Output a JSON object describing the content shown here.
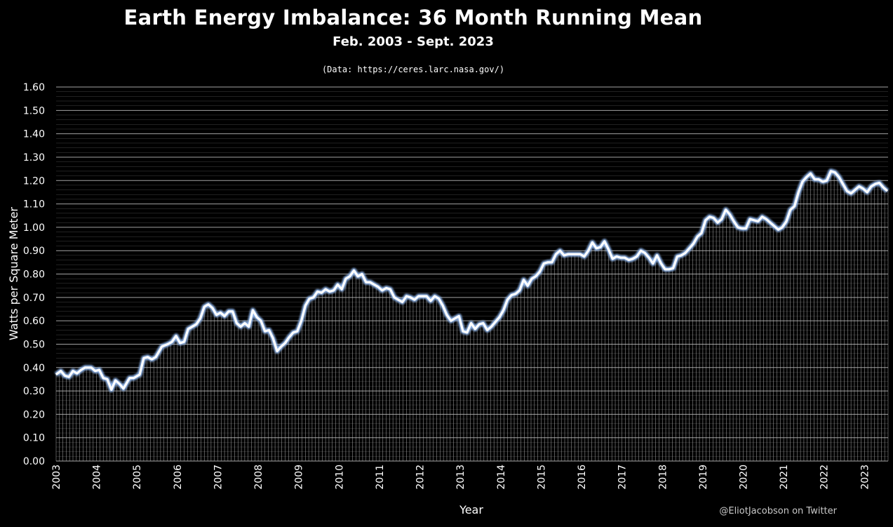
{
  "chart_data": {
    "type": "line",
    "title": "Earth Energy Imbalance: 36 Month Running Mean",
    "subtitle": "Feb. 2003 - Sept. 2023",
    "source_note": "(Data: https://ceres.larc.nasa.gov/)",
    "xlabel": "Year",
    "ylabel": "Watts per Square Meter",
    "credit": "@EliotJacobson on Twitter",
    "ylim": [
      0,
      1.6
    ],
    "yticks": [
      "0.00",
      "0.10",
      "0.20",
      "0.30",
      "0.40",
      "0.50",
      "0.60",
      "0.70",
      "0.80",
      "0.90",
      "1.00",
      "1.10",
      "1.20",
      "1.30",
      "1.40",
      "1.50",
      "1.60"
    ],
    "xticks": [
      "2003",
      "2004",
      "2005",
      "2006",
      "2007",
      "2008",
      "2009",
      "2010",
      "2011",
      "2012",
      "2013",
      "2014",
      "2015",
      "2016",
      "2017",
      "2018",
      "2019",
      "2020",
      "2021",
      "2022",
      "2023"
    ],
    "x_start": 2003.083,
    "x_end": 2023.667,
    "grid": true,
    "colors": {
      "background": "#000000",
      "line": "#ffffff",
      "line_glow": "#8fb4e8",
      "grid": "#bfbfbf"
    },
    "series": [
      {
        "points": [
          [
            2003.08,
            0.37
          ],
          [
            2003.2,
            0.385
          ],
          [
            2003.3,
            0.365
          ],
          [
            2003.4,
            0.36
          ],
          [
            2003.5,
            0.385
          ],
          [
            2003.6,
            0.375
          ],
          [
            2003.7,
            0.39
          ],
          [
            2003.8,
            0.4
          ],
          [
            2003.95,
            0.4
          ],
          [
            2004.05,
            0.385
          ],
          [
            2004.15,
            0.39
          ],
          [
            2004.25,
            0.355
          ],
          [
            2004.35,
            0.35
          ],
          [
            2004.45,
            0.305
          ],
          [
            2004.55,
            0.345
          ],
          [
            2004.65,
            0.33
          ],
          [
            2004.75,
            0.31
          ],
          [
            2004.9,
            0.355
          ],
          [
            2005.0,
            0.355
          ],
          [
            2005.15,
            0.37
          ],
          [
            2005.25,
            0.44
          ],
          [
            2005.35,
            0.445
          ],
          [
            2005.45,
            0.435
          ],
          [
            2005.55,
            0.445
          ],
          [
            2005.7,
            0.49
          ],
          [
            2005.85,
            0.5
          ],
          [
            2005.95,
            0.51
          ],
          [
            2006.05,
            0.535
          ],
          [
            2006.15,
            0.505
          ],
          [
            2006.25,
            0.51
          ],
          [
            2006.35,
            0.565
          ],
          [
            2006.45,
            0.575
          ],
          [
            2006.55,
            0.585
          ],
          [
            2006.65,
            0.61
          ],
          [
            2006.75,
            0.66
          ],
          [
            2006.85,
            0.67
          ],
          [
            2006.95,
            0.655
          ],
          [
            2007.05,
            0.625
          ],
          [
            2007.15,
            0.635
          ],
          [
            2007.25,
            0.62
          ],
          [
            2007.35,
            0.64
          ],
          [
            2007.45,
            0.64
          ],
          [
            2007.55,
            0.59
          ],
          [
            2007.65,
            0.575
          ],
          [
            2007.75,
            0.59
          ],
          [
            2007.85,
            0.575
          ],
          [
            2007.95,
            0.645
          ],
          [
            2008.05,
            0.615
          ],
          [
            2008.15,
            0.6
          ],
          [
            2008.25,
            0.555
          ],
          [
            2008.35,
            0.56
          ],
          [
            2008.45,
            0.525
          ],
          [
            2008.55,
            0.47
          ],
          [
            2008.65,
            0.49
          ],
          [
            2008.75,
            0.505
          ],
          [
            2008.85,
            0.53
          ],
          [
            2008.95,
            0.55
          ],
          [
            2009.05,
            0.555
          ],
          [
            2009.15,
            0.6
          ],
          [
            2009.25,
            0.665
          ],
          [
            2009.35,
            0.695
          ],
          [
            2009.45,
            0.7
          ],
          [
            2009.55,
            0.725
          ],
          [
            2009.65,
            0.72
          ],
          [
            2009.75,
            0.735
          ],
          [
            2009.85,
            0.725
          ],
          [
            2009.95,
            0.73
          ],
          [
            2010.05,
            0.755
          ],
          [
            2010.15,
            0.735
          ],
          [
            2010.25,
            0.78
          ],
          [
            2010.35,
            0.79
          ],
          [
            2010.45,
            0.815
          ],
          [
            2010.55,
            0.79
          ],
          [
            2010.65,
            0.8
          ],
          [
            2010.75,
            0.765
          ],
          [
            2010.85,
            0.765
          ],
          [
            2010.95,
            0.755
          ],
          [
            2011.05,
            0.745
          ],
          [
            2011.15,
            0.73
          ],
          [
            2011.25,
            0.74
          ],
          [
            2011.35,
            0.735
          ],
          [
            2011.45,
            0.7
          ],
          [
            2011.55,
            0.69
          ],
          [
            2011.65,
            0.68
          ],
          [
            2011.75,
            0.705
          ],
          [
            2011.85,
            0.7
          ],
          [
            2011.95,
            0.69
          ],
          [
            2012.05,
            0.705
          ],
          [
            2012.15,
            0.705
          ],
          [
            2012.25,
            0.705
          ],
          [
            2012.35,
            0.685
          ],
          [
            2012.45,
            0.705
          ],
          [
            2012.55,
            0.695
          ],
          [
            2012.65,
            0.665
          ],
          [
            2012.75,
            0.625
          ],
          [
            2012.85,
            0.6
          ],
          [
            2012.95,
            0.61
          ],
          [
            2013.05,
            0.62
          ],
          [
            2013.15,
            0.555
          ],
          [
            2013.25,
            0.55
          ],
          [
            2013.35,
            0.59
          ],
          [
            2013.45,
            0.565
          ],
          [
            2013.55,
            0.585
          ],
          [
            2013.65,
            0.59
          ],
          [
            2013.75,
            0.56
          ],
          [
            2013.85,
            0.575
          ],
          [
            2013.95,
            0.595
          ],
          [
            2014.05,
            0.615
          ],
          [
            2014.15,
            0.645
          ],
          [
            2014.25,
            0.69
          ],
          [
            2014.35,
            0.71
          ],
          [
            2014.45,
            0.715
          ],
          [
            2014.55,
            0.73
          ],
          [
            2014.65,
            0.775
          ],
          [
            2014.75,
            0.75
          ],
          [
            2014.85,
            0.78
          ],
          [
            2014.95,
            0.79
          ],
          [
            2015.05,
            0.81
          ],
          [
            2015.15,
            0.845
          ],
          [
            2015.25,
            0.85
          ],
          [
            2015.35,
            0.85
          ],
          [
            2015.45,
            0.885
          ],
          [
            2015.55,
            0.9
          ],
          [
            2015.65,
            0.88
          ],
          [
            2015.75,
            0.885
          ],
          [
            2015.85,
            0.885
          ],
          [
            2015.95,
            0.885
          ],
          [
            2016.05,
            0.885
          ],
          [
            2016.15,
            0.875
          ],
          [
            2016.25,
            0.9
          ],
          [
            2016.35,
            0.935
          ],
          [
            2016.45,
            0.91
          ],
          [
            2016.55,
            0.915
          ],
          [
            2016.65,
            0.94
          ],
          [
            2016.75,
            0.905
          ],
          [
            2016.85,
            0.865
          ],
          [
            2016.95,
            0.875
          ],
          [
            2017.05,
            0.87
          ],
          [
            2017.15,
            0.87
          ],
          [
            2017.25,
            0.86
          ],
          [
            2017.35,
            0.865
          ],
          [
            2017.45,
            0.875
          ],
          [
            2017.55,
            0.9
          ],
          [
            2017.65,
            0.89
          ],
          [
            2017.75,
            0.87
          ],
          [
            2017.85,
            0.845
          ],
          [
            2017.95,
            0.88
          ],
          [
            2018.05,
            0.845
          ],
          [
            2018.15,
            0.82
          ],
          [
            2018.25,
            0.82
          ],
          [
            2018.35,
            0.825
          ],
          [
            2018.45,
            0.875
          ],
          [
            2018.55,
            0.88
          ],
          [
            2018.65,
            0.89
          ],
          [
            2018.75,
            0.91
          ],
          [
            2018.85,
            0.93
          ],
          [
            2018.95,
            0.96
          ],
          [
            2019.05,
            0.975
          ],
          [
            2019.15,
            1.03
          ],
          [
            2019.25,
            1.045
          ],
          [
            2019.35,
            1.04
          ],
          [
            2019.45,
            1.02
          ],
          [
            2019.55,
            1.035
          ],
          [
            2019.65,
            1.075
          ],
          [
            2019.75,
            1.055
          ],
          [
            2019.85,
            1.025
          ],
          [
            2019.95,
            1.0
          ],
          [
            2020.05,
            0.995
          ],
          [
            2020.15,
            0.995
          ],
          [
            2020.25,
            1.035
          ],
          [
            2020.35,
            1.03
          ],
          [
            2020.45,
            1.025
          ],
          [
            2020.55,
            1.045
          ],
          [
            2020.65,
            1.035
          ],
          [
            2020.75,
            1.02
          ],
          [
            2020.85,
            1.005
          ],
          [
            2020.95,
            0.99
          ],
          [
            2021.05,
            1.0
          ],
          [
            2021.15,
            1.025
          ],
          [
            2021.25,
            1.075
          ],
          [
            2021.35,
            1.09
          ],
          [
            2021.45,
            1.15
          ],
          [
            2021.55,
            1.195
          ],
          [
            2021.65,
            1.215
          ],
          [
            2021.75,
            1.23
          ],
          [
            2021.85,
            1.205
          ],
          [
            2021.95,
            1.205
          ],
          [
            2022.05,
            1.195
          ],
          [
            2022.15,
            1.2
          ],
          [
            2022.25,
            1.24
          ],
          [
            2022.35,
            1.235
          ],
          [
            2022.45,
            1.215
          ],
          [
            2022.55,
            1.185
          ],
          [
            2022.65,
            1.155
          ],
          [
            2022.75,
            1.145
          ],
          [
            2022.85,
            1.16
          ],
          [
            2022.95,
            1.175
          ],
          [
            2023.05,
            1.165
          ],
          [
            2023.15,
            1.15
          ],
          [
            2023.25,
            1.175
          ],
          [
            2023.35,
            1.185
          ],
          [
            2023.45,
            1.19
          ],
          [
            2023.55,
            1.17
          ],
          [
            2023.65,
            1.155
          ]
        ]
      }
    ]
  }
}
